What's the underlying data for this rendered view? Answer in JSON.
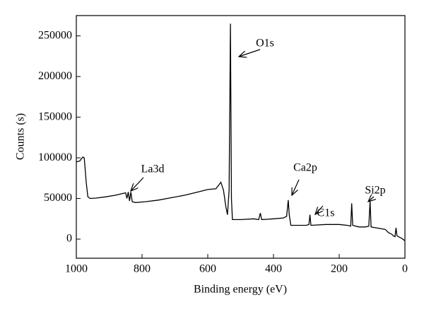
{
  "chart_data": {
    "type": "line",
    "x_label": "Binding energy (eV)",
    "y_label": "Counts (s)",
    "x": [
      1000,
      990,
      980,
      976,
      970,
      965,
      958,
      940,
      910,
      880,
      860,
      850,
      846,
      842,
      838,
      834,
      830,
      820,
      790,
      750,
      710,
      670,
      630,
      600,
      575,
      560,
      552,
      545,
      540,
      535,
      531,
      528,
      525,
      500,
      460,
      445,
      440,
      436,
      400,
      370,
      360,
      355,
      352,
      347,
      320,
      300,
      292,
      289,
      286,
      240,
      200,
      175,
      165,
      162,
      159,
      140,
      120,
      110,
      106,
      103,
      90,
      60,
      50,
      40,
      35,
      30,
      27,
      24,
      15,
      10,
      0
    ],
    "values": [
      95000,
      96000,
      101000,
      100000,
      70000,
      52000,
      50000,
      50500,
      52000,
      54000,
      56000,
      57000,
      50000,
      58000,
      47000,
      58000,
      46000,
      45000,
      46000,
      48000,
      51000,
      54000,
      58000,
      61000,
      62000,
      70000,
      60000,
      40000,
      30000,
      60000,
      265000,
      50000,
      24000,
      24000,
      25000,
      24000,
      32000,
      24000,
      25000,
      26000,
      28000,
      48000,
      30000,
      17000,
      17000,
      17000,
      18000,
      30000,
      17000,
      18000,
      18000,
      17000,
      16000,
      44000,
      17000,
      15000,
      15000,
      16000,
      47000,
      15000,
      14000,
      12000,
      8000,
      6000,
      4000,
      3000,
      14000,
      4000,
      2000,
      1000,
      -2000
    ],
    "color": "#000000",
    "xlim": [
      1000,
      0
    ],
    "xticks": [
      1000,
      800,
      600,
      400,
      200,
      0
    ],
    "ylim": [
      -23500,
      275000
    ],
    "yticks": [
      0,
      50000,
      100000,
      150000,
      200000,
      250000
    ],
    "annotations": [
      "O1s",
      "La3d",
      "Ca2p",
      "C1s",
      "Si2p"
    ]
  }
}
